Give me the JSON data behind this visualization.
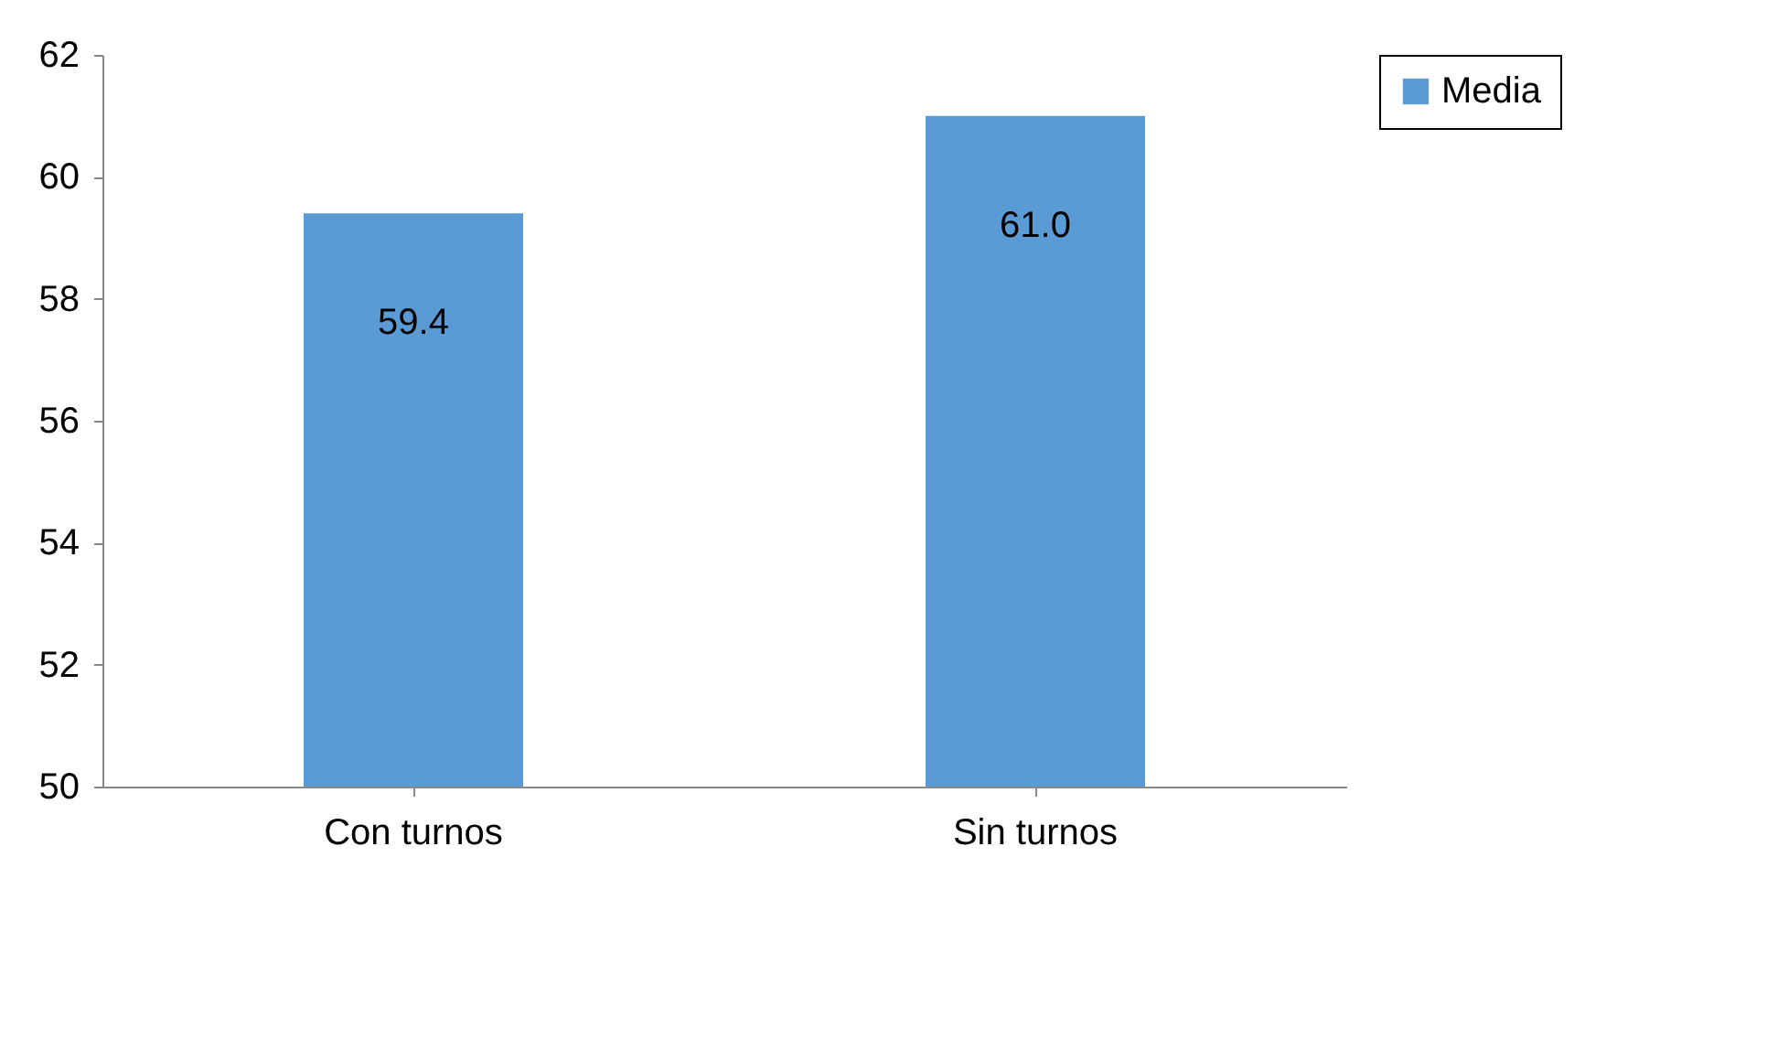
{
  "chart_data": {
    "type": "bar",
    "categories": [
      "Con turnos",
      "Sin turnos"
    ],
    "series": [
      {
        "name": "Media",
        "color": "#5b9bd5",
        "values": [
          59.4,
          61.0
        ],
        "value_labels": [
          "59.4",
          "61.0"
        ]
      }
    ],
    "ylim": [
      50,
      62
    ],
    "yticks": [
      50,
      52,
      54,
      56,
      58,
      60,
      62
    ],
    "grid": false,
    "legend": "right"
  }
}
